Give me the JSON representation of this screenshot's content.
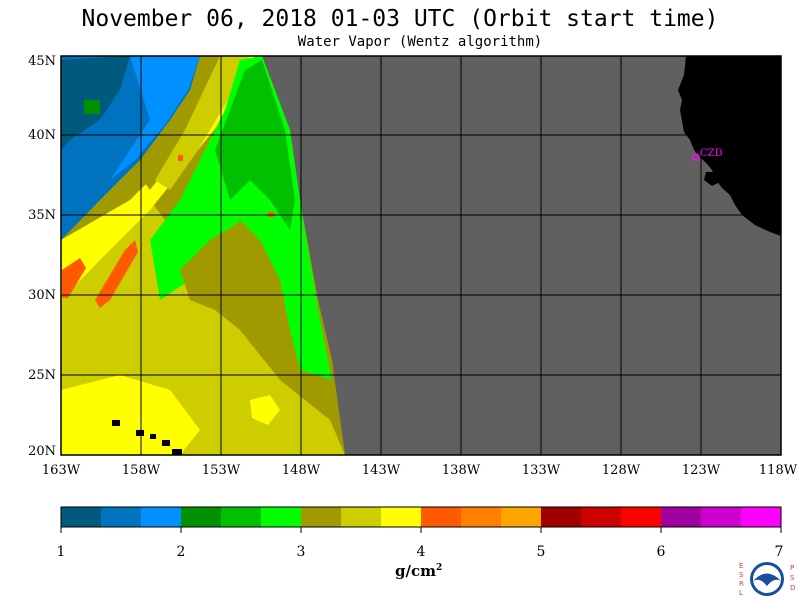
{
  "title": "November 06, 2018  01-03 UTC  (Orbit start time)",
  "subtitle": "Water Vapor (Wentz algorithm)",
  "map": {
    "lat_labels": [
      "45N",
      "40N",
      "35N",
      "30N",
      "25N",
      "20N"
    ],
    "lon_labels": [
      "163W",
      "158W",
      "153W",
      "148W",
      "143W",
      "138W",
      "133W",
      "128W",
      "123W",
      "118W"
    ],
    "lat_range": [
      20,
      45
    ],
    "lon_range": [
      -163,
      -118
    ],
    "station_label": "CZD",
    "colors": {
      "no_data": "#606060",
      "land": "#000000",
      "grid": "#000000",
      "station": "#ff00ff"
    }
  },
  "colorbar": {
    "tick_labels": [
      "1",
      "2",
      "3",
      "4",
      "5",
      "6",
      "7"
    ],
    "units": "g/cm",
    "units_exp": "2",
    "colors": [
      "#005a7d",
      "#0073c0",
      "#0090ff",
      "#009000",
      "#00c000",
      "#00ff00",
      "#a09a00",
      "#cdcd00",
      "#ffff00",
      "#ff5a00",
      "#ff8000",
      "#ffa500",
      "#a00000",
      "#cd0000",
      "#ff0000",
      "#a000a0",
      "#cd00cd",
      "#ff00ff"
    ]
  },
  "logo": {
    "left_letters": "ESRL",
    "right_letters": "PSD",
    "center": "NOAA"
  }
}
